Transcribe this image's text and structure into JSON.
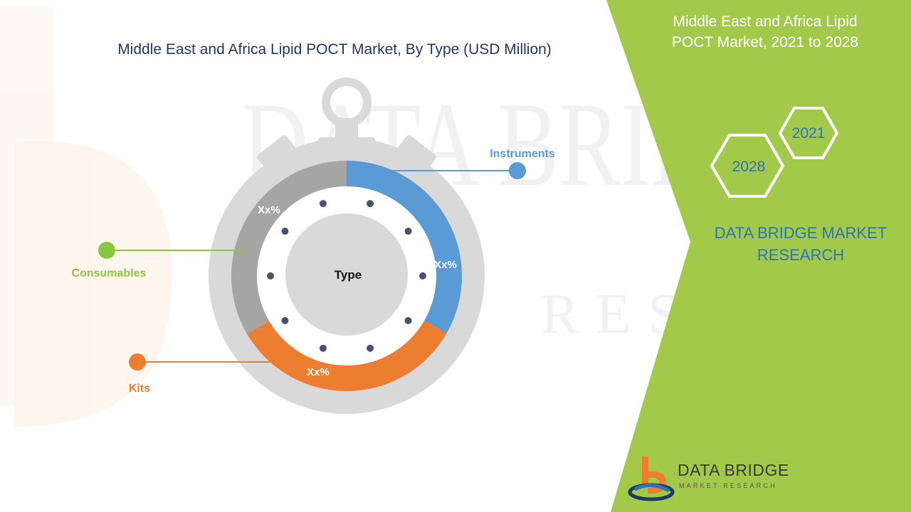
{
  "title": "Middle East and Africa Lipid POCT Market, By Type (USD Million)",
  "side_panel": {
    "title_line1": "Middle East and Africa Lipid",
    "title_line2": "POCT Market, 2021 to 2028",
    "hex_year_a": "2021",
    "hex_year_b": "2028",
    "brand_line1": "DATA BRIDGE MARKET",
    "brand_line2": "RESEARCH"
  },
  "logo": {
    "name": "DATA BRIDGE",
    "tagline": "MARKET RESEARCH"
  },
  "watermark": {
    "line1": "DATA BRIDGE",
    "line2": "RESEARCH"
  },
  "colors": {
    "instruments": "#5b9bd5",
    "kits": "#ed7d31",
    "consumables": "#a5a5a5",
    "consumables_label": "#8dc63f",
    "green_panel": "#a2c94a"
  },
  "chart_data": {
    "type": "pie",
    "style": "donut inside stopwatch graphic",
    "center_label": "Type",
    "series": [
      {
        "name": "Instruments",
        "value_label": "Xx%",
        "share": 0.333
      },
      {
        "name": "Kits",
        "value_label": "Xx%",
        "share": 0.333
      },
      {
        "name": "Consumables",
        "value_label": "Xx%",
        "share": 0.334
      }
    ]
  }
}
